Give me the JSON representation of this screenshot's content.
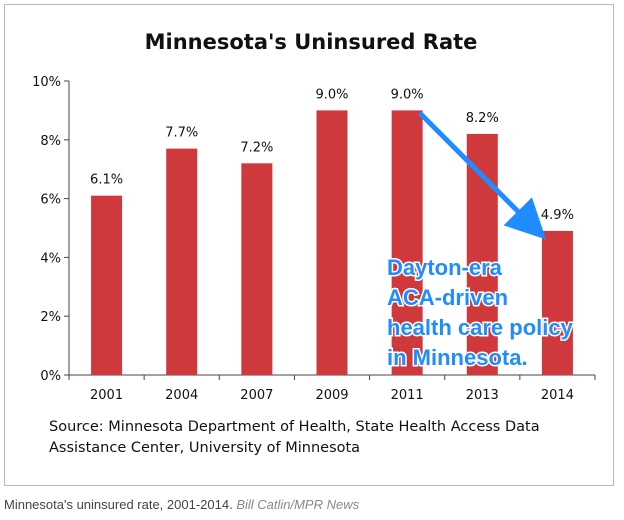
{
  "chart_data": {
    "type": "bar",
    "title": "Minnesota's Uninsured Rate",
    "categories": [
      "2001",
      "2004",
      "2007",
      "2009",
      "2011",
      "2013",
      "2014"
    ],
    "values": [
      6.1,
      7.7,
      7.2,
      9.0,
      9.0,
      8.2,
      4.9
    ],
    "data_labels": [
      "6.1%",
      "7.7%",
      "7.2%",
      "9.0%",
      "9.0%",
      "8.2%",
      "4.9%"
    ],
    "ylim": [
      0,
      10
    ],
    "yticks": [
      0,
      2,
      4,
      6,
      8,
      10
    ],
    "ytick_labels": [
      "0%",
      "2%",
      "4%",
      "6%",
      "8%",
      "10%"
    ],
    "xlabel": "",
    "ylabel": "",
    "grid": false,
    "bar_color": "#d0393c",
    "annotation": {
      "lines": [
        "Dayton-era",
        "ACA-driven",
        "health care policy",
        "in Minnesota."
      ],
      "arrow": {
        "from_category": "2011",
        "to_category": "2014"
      },
      "color": "#1f8cff"
    }
  },
  "source_note": "Source: Minnesota Department of Health, State Health Access Data Assistance Center, University of Minnesota",
  "caption": {
    "text": "Minnesota's uninsured rate, 2001-2014.",
    "credit": "Bill Catlin/MPR News"
  }
}
